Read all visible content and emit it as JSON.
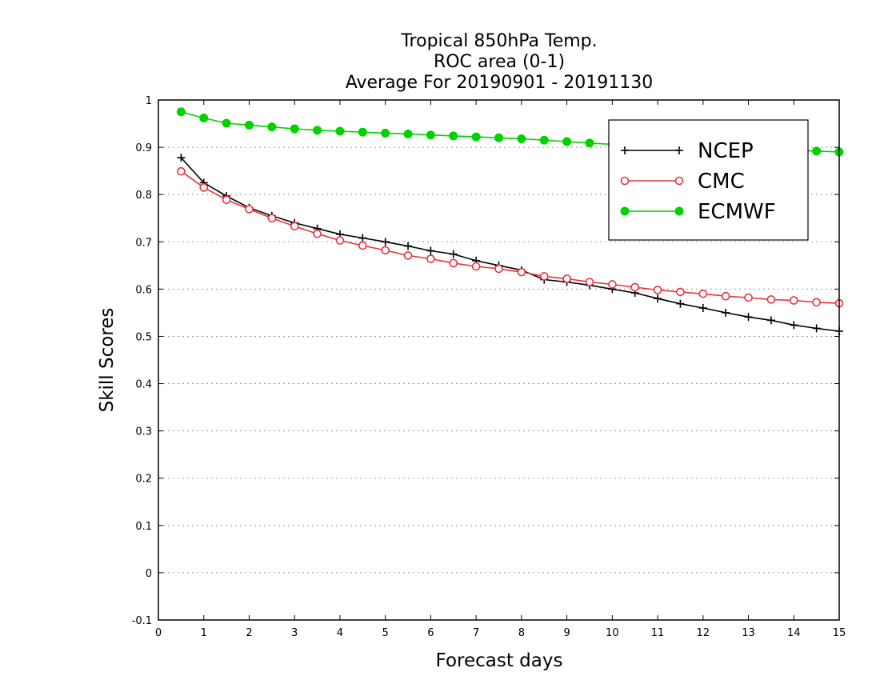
{
  "chart_data": {
    "type": "line",
    "title": [
      "Tropical 850hPa Temp.",
      "ROC area (0-1)",
      "Average For 20190901 - 20191130"
    ],
    "xlabel": "Forecast days",
    "ylabel": "Skill Scores",
    "xlim": [
      0,
      15
    ],
    "ylim": [
      -0.1,
      1
    ],
    "xticks": [
      "0",
      "1",
      "2",
      "3",
      "4",
      "5",
      "6",
      "7",
      "8",
      "9",
      "10",
      "11",
      "12",
      "13",
      "14",
      "15"
    ],
    "yticks": [
      "-0.1",
      "0",
      "0.1",
      "0.2",
      "0.3",
      "0.4",
      "0.5",
      "0.6",
      "0.7",
      "0.8",
      "0.9",
      "1"
    ],
    "grid": "horizontal dotted",
    "legend_position": "top-right",
    "x": [
      0.5,
      1,
      1.5,
      2,
      2.5,
      3,
      3.5,
      4,
      4.5,
      5,
      5.5,
      6,
      6.5,
      7,
      7.5,
      8,
      8.5,
      9,
      9.5,
      10,
      10.5,
      11,
      11.5,
      12,
      12.5,
      13,
      13.5,
      14,
      14.5,
      15
    ],
    "series": [
      {
        "name": "NCEP",
        "color": "#000000",
        "marker": "plus",
        "values": [
          0.878,
          0.825,
          0.797,
          0.772,
          0.755,
          0.74,
          0.728,
          0.716,
          0.708,
          0.7,
          0.691,
          0.681,
          0.674,
          0.66,
          0.65,
          0.64,
          0.62,
          0.615,
          0.608,
          0.6,
          0.592,
          0.58,
          0.569,
          0.56,
          0.55,
          0.541,
          0.534,
          0.524,
          0.517,
          0.511
        ]
      },
      {
        "name": "CMC",
        "color": "#e8323c",
        "marker": "open-circle",
        "values": [
          0.849,
          0.815,
          0.789,
          0.769,
          0.75,
          0.733,
          0.717,
          0.703,
          0.692,
          0.682,
          0.671,
          0.664,
          0.655,
          0.648,
          0.643,
          0.636,
          0.627,
          0.622,
          0.615,
          0.61,
          0.604,
          0.598,
          0.594,
          0.59,
          0.585,
          0.582,
          0.578,
          0.576,
          0.572,
          0.57
        ]
      },
      {
        "name": "ECMWF",
        "color": "#00d200",
        "marker": "filled-circle",
        "values": [
          0.975,
          0.962,
          0.951,
          0.947,
          0.943,
          0.939,
          0.936,
          0.934,
          0.932,
          0.93,
          0.928,
          0.926,
          0.924,
          0.922,
          0.92,
          0.918,
          0.915,
          0.912,
          0.909,
          0.906,
          0.903,
          0.901,
          0.899,
          0.897,
          0.896,
          0.895,
          0.894,
          0.893,
          0.892,
          0.89
        ]
      }
    ]
  }
}
